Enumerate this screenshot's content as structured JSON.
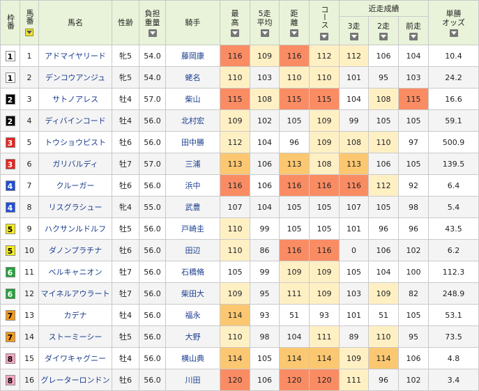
{
  "header": {
    "waku": "枠番",
    "umaban": "馬番",
    "bamei": "馬名",
    "seirei": "性齢",
    "kinryo_1": "負担",
    "kinryo_2": "重量",
    "kishu": "騎手",
    "saiko_1": "最",
    "saiko_2": "高",
    "avg5_1": "5走",
    "avg5_2": "平均",
    "kyori_1": "距",
    "kyori_2": "離",
    "course": "コース",
    "recent": "近走成績",
    "r3": "3走",
    "r2": "2走",
    "r1": "前走",
    "odds_1": "単勝",
    "odds_2": "オッズ"
  },
  "colors": {
    "header_bg": "#e9f3d9",
    "rank1": "#fa8c64",
    "rank2": "#fbc770",
    "rank3": "#fff0c4",
    "link": "#1a3d8f"
  },
  "waku_colors": {
    "1": {
      "bg": "#ffffff",
      "fg": "#000000"
    },
    "2": {
      "bg": "#000000",
      "fg": "#ffffff"
    },
    "3": {
      "bg": "#e8231e",
      "fg": "#ffffff"
    },
    "4": {
      "bg": "#1f4ed8",
      "fg": "#ffffff"
    },
    "5": {
      "bg": "#f7ec1e",
      "fg": "#000000"
    },
    "6": {
      "bg": "#22a13a",
      "fg": "#ffffff"
    },
    "7": {
      "bg": "#f39a1a",
      "fg": "#000000"
    },
    "8": {
      "bg": "#f5a7c0",
      "fg": "#000000"
    }
  },
  "rows": [
    {
      "waku": "1",
      "uma": "1",
      "name": "アドマイヤリード",
      "sex": "牝5",
      "kin": "54.0",
      "jockey": "藤岡康",
      "saiko": "116",
      "saiko_c": "h1",
      "avg": "109",
      "avg_c": "h3",
      "kyori": "116",
      "kyori_c": "h1",
      "course": "112",
      "course_c": "h3",
      "r3": "112",
      "r3_c": "h3",
      "r2": "106",
      "r2_c": "",
      "r1": "104",
      "r1_c": "",
      "odds": "10.4"
    },
    {
      "waku": "1",
      "uma": "2",
      "name": "デンコウアンジュ",
      "sex": "牝5",
      "kin": "54.0",
      "jockey": "蛯名",
      "saiko": "110",
      "saiko_c": "h3",
      "avg": "103",
      "avg_c": "",
      "kyori": "110",
      "kyori_c": "h3",
      "course": "110",
      "course_c": "h3",
      "r3": "101",
      "r3_c": "",
      "r2": "95",
      "r2_c": "",
      "r1": "103",
      "r1_c": "",
      "odds": "24.2"
    },
    {
      "waku": "2",
      "uma": "3",
      "name": "サトノアレス",
      "sex": "牡4",
      "kin": "57.0",
      "jockey": "柴山",
      "saiko": "115",
      "saiko_c": "h1",
      "avg": "108",
      "avg_c": "h3",
      "kyori": "115",
      "kyori_c": "h1",
      "course": "115",
      "course_c": "h1",
      "r3": "104",
      "r3_c": "",
      "r2": "108",
      "r2_c": "h3",
      "r1": "115",
      "r1_c": "h1",
      "odds": "16.6"
    },
    {
      "waku": "2",
      "uma": "4",
      "name": "ディバインコード",
      "sex": "牡4",
      "kin": "56.0",
      "jockey": "北村宏",
      "saiko": "109",
      "saiko_c": "h3",
      "avg": "102",
      "avg_c": "",
      "kyori": "105",
      "kyori_c": "",
      "course": "109",
      "course_c": "h3",
      "r3": "99",
      "r3_c": "",
      "r2": "105",
      "r2_c": "",
      "r1": "105",
      "r1_c": "",
      "odds": "59.1"
    },
    {
      "waku": "3",
      "uma": "5",
      "name": "トウショウピスト",
      "sex": "牡6",
      "kin": "56.0",
      "jockey": "田中勝",
      "saiko": "112",
      "saiko_c": "h3",
      "avg": "104",
      "avg_c": "",
      "kyori": "96",
      "kyori_c": "",
      "course": "109",
      "course_c": "h3",
      "r3": "108",
      "r3_c": "h3",
      "r2": "110",
      "r2_c": "h3",
      "r1": "97",
      "r1_c": "",
      "odds": "500.9"
    },
    {
      "waku": "3",
      "uma": "6",
      "name": "ガリバルディ",
      "sex": "牡7",
      "kin": "57.0",
      "jockey": "三浦",
      "saiko": "113",
      "saiko_c": "h2",
      "avg": "106",
      "avg_c": "",
      "kyori": "113",
      "kyori_c": "h2",
      "course": "108",
      "course_c": "h3",
      "r3": "113",
      "r3_c": "h2",
      "r2": "106",
      "r2_c": "",
      "r1": "105",
      "r1_c": "",
      "odds": "139.5"
    },
    {
      "waku": "4",
      "uma": "7",
      "name": "クルーガー",
      "sex": "牡6",
      "kin": "56.0",
      "jockey": "浜中",
      "saiko": "116",
      "saiko_c": "h1",
      "avg": "106",
      "avg_c": "",
      "kyori": "116",
      "kyori_c": "h1",
      "course": "116",
      "course_c": "h1",
      "r3": "116",
      "r3_c": "h1",
      "r2": "112",
      "r2_c": "h3",
      "r1": "92",
      "r1_c": "",
      "odds": "6.4"
    },
    {
      "waku": "4",
      "uma": "8",
      "name": "リスグラシュー",
      "sex": "牝4",
      "kin": "55.0",
      "jockey": "武豊",
      "saiko": "107",
      "saiko_c": "",
      "avg": "104",
      "avg_c": "",
      "kyori": "105",
      "kyori_c": "",
      "course": "105",
      "course_c": "",
      "r3": "107",
      "r3_c": "",
      "r2": "105",
      "r2_c": "",
      "r1": "98",
      "r1_c": "",
      "odds": "5.4"
    },
    {
      "waku": "5",
      "uma": "9",
      "name": "ハクサンルドルフ",
      "sex": "牡5",
      "kin": "56.0",
      "jockey": "戸崎圭",
      "saiko": "110",
      "saiko_c": "h3",
      "avg": "99",
      "avg_c": "",
      "kyori": "105",
      "kyori_c": "",
      "course": "105",
      "course_c": "",
      "r3": "101",
      "r3_c": "",
      "r2": "96",
      "r2_c": "",
      "r1": "96",
      "r1_c": "",
      "odds": "43.5"
    },
    {
      "waku": "5",
      "uma": "10",
      "name": "ダノンプラチナ",
      "sex": "牡6",
      "kin": "56.0",
      "jockey": "田辺",
      "saiko": "110",
      "saiko_c": "h3",
      "avg": "86",
      "avg_c": "",
      "kyori": "116",
      "kyori_c": "h1",
      "course": "116",
      "course_c": "h1",
      "r3": "0",
      "r3_c": "",
      "r2": "106",
      "r2_c": "",
      "r1": "102",
      "r1_c": "",
      "odds": "6.2"
    },
    {
      "waku": "6",
      "uma": "11",
      "name": "ベルキャニオン",
      "sex": "牡7",
      "kin": "56.0",
      "jockey": "石橋脩",
      "saiko": "105",
      "saiko_c": "",
      "avg": "99",
      "avg_c": "",
      "kyori": "109",
      "kyori_c": "h3",
      "course": "109",
      "course_c": "h3",
      "r3": "105",
      "r3_c": "",
      "r2": "104",
      "r2_c": "",
      "r1": "100",
      "r1_c": "",
      "odds": "112.3"
    },
    {
      "waku": "6",
      "uma": "12",
      "name": "マイネルアウラート",
      "sex": "牡7",
      "kin": "56.0",
      "jockey": "柴田大",
      "saiko": "109",
      "saiko_c": "h3",
      "avg": "95",
      "avg_c": "",
      "kyori": "111",
      "kyori_c": "h3",
      "course": "109",
      "course_c": "h3",
      "r3": "103",
      "r3_c": "",
      "r2": "109",
      "r2_c": "h3",
      "r1": "82",
      "r1_c": "",
      "odds": "248.9"
    },
    {
      "waku": "7",
      "uma": "13",
      "name": "カデナ",
      "sex": "牡4",
      "kin": "56.0",
      "jockey": "福永",
      "saiko": "114",
      "saiko_c": "h2",
      "avg": "93",
      "avg_c": "",
      "kyori": "51",
      "kyori_c": "",
      "course": "93",
      "course_c": "",
      "r3": "101",
      "r3_c": "",
      "r2": "51",
      "r2_c": "",
      "r1": "105",
      "r1_c": "",
      "odds": "53.1"
    },
    {
      "waku": "7",
      "uma": "14",
      "name": "ストーミーシー",
      "sex": "牡5",
      "kin": "56.0",
      "jockey": "大野",
      "saiko": "110",
      "saiko_c": "h3",
      "avg": "98",
      "avg_c": "",
      "kyori": "104",
      "kyori_c": "",
      "course": "111",
      "course_c": "h3",
      "r3": "89",
      "r3_c": "",
      "r2": "110",
      "r2_c": "h3",
      "r1": "95",
      "r1_c": "",
      "odds": "73.5"
    },
    {
      "waku": "8",
      "uma": "15",
      "name": "ダイワキャグニー",
      "sex": "牡4",
      "kin": "56.0",
      "jockey": "横山典",
      "saiko": "114",
      "saiko_c": "h2",
      "avg": "105",
      "avg_c": "",
      "kyori": "114",
      "kyori_c": "h2",
      "course": "114",
      "course_c": "h2",
      "r3": "109",
      "r3_c": "h3",
      "r2": "114",
      "r2_c": "h2",
      "r1": "106",
      "r1_c": "",
      "odds": "4.8"
    },
    {
      "waku": "8",
      "uma": "16",
      "name": "グレーターロンドン",
      "sex": "牡6",
      "kin": "56.0",
      "jockey": "川田",
      "saiko": "120",
      "saiko_c": "h1",
      "avg": "106",
      "avg_c": "",
      "kyori": "120",
      "kyori_c": "h1",
      "course": "120",
      "course_c": "h1",
      "r3": "111",
      "r3_c": "h3",
      "r2": "96",
      "r2_c": "",
      "r1": "102",
      "r1_c": "",
      "odds": "3.4"
    }
  ]
}
